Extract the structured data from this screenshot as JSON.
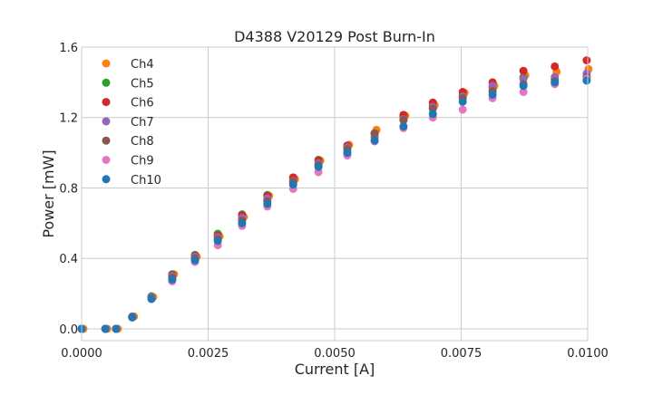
{
  "chart_data": {
    "type": "scatter",
    "title": "D4388 V20129 Post Burn-In",
    "xlabel": "Current [A]",
    "ylabel": "Power [mW]",
    "xlim": [
      0,
      0.01
    ],
    "ylim": [
      -0.067,
      1.6
    ],
    "xticks": [
      0,
      0.0025,
      0.005,
      0.0075,
      0.01
    ],
    "xtick_labels": [
      "0.0000",
      "0.0025",
      "0.0050",
      "0.0075",
      "0.0100"
    ],
    "yticks": [
      0,
      0.4,
      0.8,
      1.2,
      1.6
    ],
    "ytick_labels": [
      "0.0",
      "0.4",
      "0.8",
      "1.2",
      "1.6"
    ],
    "grid": true,
    "legend_position": "top-left",
    "x": [
      0,
      0.00047,
      0.00068,
      0.001,
      0.00138,
      0.00179,
      0.00224,
      0.00269,
      0.00317,
      0.00367,
      0.00418,
      0.00468,
      0.00525,
      0.00579,
      0.00636,
      0.00694,
      0.00753,
      0.00812,
      0.00873,
      0.00935,
      0.00998
    ],
    "series": [
      {
        "name": "Ch4",
        "color": "#ff7f0e",
        "values": [
          0,
          0,
          0,
          0.07,
          0.18,
          0.31,
          0.41,
          0.525,
          0.635,
          0.755,
          0.85,
          0.955,
          1.045,
          1.13,
          1.21,
          1.27,
          1.34,
          1.38,
          1.44,
          1.46,
          1.475
        ]
      },
      {
        "name": "Ch5",
        "color": "#2ca02c",
        "values": [
          0,
          0,
          0,
          0.07,
          0.185,
          0.31,
          0.42,
          0.54,
          0.65,
          0.76,
          0.855,
          0.96,
          1.04,
          1.11,
          1.205,
          1.27,
          1.33,
          1.37,
          1.43,
          1.42,
          1.43
        ]
      },
      {
        "name": "Ch6",
        "color": "#d62728",
        "values": [
          0,
          0,
          0,
          0.07,
          0.18,
          0.305,
          0.415,
          0.53,
          0.645,
          0.755,
          0.86,
          0.955,
          1.04,
          1.11,
          1.215,
          1.285,
          1.345,
          1.4,
          1.465,
          1.49,
          1.525
        ]
      },
      {
        "name": "Ch7",
        "color": "#9467bd",
        "values": [
          0,
          0,
          0,
          0.07,
          0.18,
          0.3,
          0.41,
          0.52,
          0.63,
          0.74,
          0.84,
          0.94,
          1.03,
          1.09,
          1.19,
          1.26,
          1.32,
          1.38,
          1.42,
          1.43,
          1.45
        ]
      },
      {
        "name": "Ch8",
        "color": "#8c564b",
        "values": [
          0,
          0,
          0,
          0.065,
          0.175,
          0.29,
          0.4,
          0.51,
          0.615,
          0.725,
          0.835,
          0.93,
          1.02,
          1.11,
          1.185,
          1.25,
          1.31,
          1.35,
          1.39,
          1.405,
          1.43
        ]
      },
      {
        "name": "Ch9",
        "color": "#e377c2",
        "values": [
          0,
          0,
          0,
          0.065,
          0.17,
          0.27,
          0.38,
          0.475,
          0.585,
          0.695,
          0.795,
          0.89,
          0.985,
          1.065,
          1.14,
          1.2,
          1.245,
          1.31,
          1.345,
          1.39,
          1.42
        ]
      },
      {
        "name": "Ch10",
        "color": "#1f77b4",
        "values": [
          0,
          0,
          0,
          0.065,
          0.17,
          0.28,
          0.39,
          0.5,
          0.6,
          0.71,
          0.82,
          0.92,
          1.0,
          1.07,
          1.15,
          1.22,
          1.29,
          1.33,
          1.38,
          1.4,
          1.41
        ]
      }
    ]
  }
}
